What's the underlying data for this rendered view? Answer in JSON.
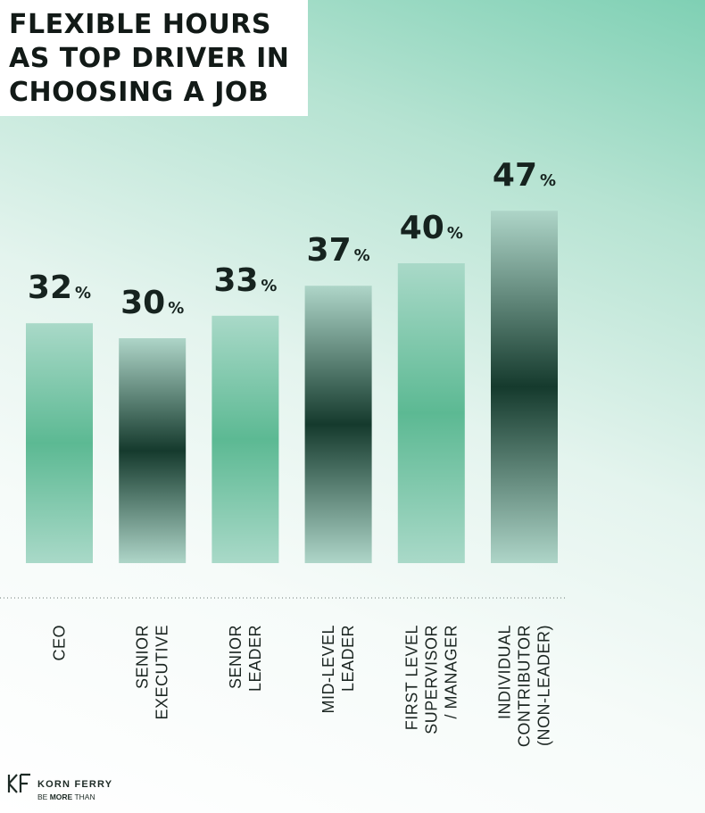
{
  "title_lines": [
    "FLEXIBLE HOURS",
    "AS TOP DRIVER IN",
    "CHOOSING A JOB"
  ],
  "chart_data": {
    "type": "bar",
    "title": "FLEXIBLE HOURS AS TOP DRIVER IN CHOOSING A JOB",
    "categories": [
      [
        "CEO"
      ],
      [
        "SENIOR",
        "EXECUTIVE"
      ],
      [
        "SENIOR",
        "LEADER"
      ],
      [
        "MID-LEVEL",
        "LEADER"
      ],
      [
        "FIRST LEVEL",
        "SUPERVISOR",
        "/ MANAGER"
      ],
      [
        "INDIVIDUAL",
        "CONTRIBUTOR",
        "(NON-LEADER)"
      ]
    ],
    "values": [
      32,
      30,
      33,
      37,
      40,
      47
    ],
    "value_suffix": "%",
    "bar_styles": [
      "light",
      "dark",
      "light",
      "dark",
      "light",
      "dark"
    ],
    "colors": {
      "light_edge": "#a9d9c8",
      "light_center": "#5cb993",
      "dark_edge": "#aed5c8",
      "dark_center": "#153a2d",
      "text": "#16231f"
    },
    "baseline": "dotted",
    "grid": false,
    "legend": "none"
  },
  "brand": {
    "name": "KORN FERRY",
    "tagline_prefix": "BE",
    "tagline_bold": "MORE",
    "tagline_suffix": "THAN"
  }
}
